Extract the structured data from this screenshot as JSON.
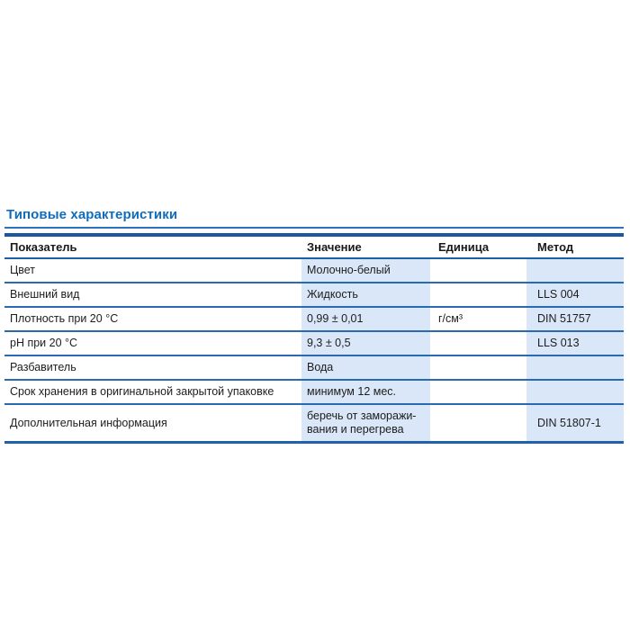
{
  "page": {
    "title": "Типовые характеристики"
  },
  "colors": {
    "title_blue": "#0f6cbd",
    "rule_blue": "#2a6ab0",
    "thick_bar_blue": "#1a57a3",
    "cell_light_blue": "#d9e7f8",
    "text": "#1d1d1d",
    "background": "#ffffff"
  },
  "table": {
    "columns": [
      {
        "label": "Показатель"
      },
      {
        "label": "Значение"
      },
      {
        "label": "Единица"
      },
      {
        "label": "Метод"
      }
    ],
    "rows": [
      {
        "indicator": "Цвет",
        "value": "Молочно-белый",
        "unit": "",
        "method": ""
      },
      {
        "indicator": "Внешний вид",
        "value": "Жидкость",
        "unit": "",
        "method": "LLS 004"
      },
      {
        "indicator": "Плотность при 20 °C",
        "value": "0,99 ± 0,01",
        "unit": "г/см³",
        "method": "DIN 51757"
      },
      {
        "indicator": "pH при 20 °C",
        "value": "9,3 ± 0,5",
        "unit": "",
        "method": "LLS 013"
      },
      {
        "indicator": "Разбавитель",
        "value": "Вода",
        "unit": "",
        "method": ""
      },
      {
        "indicator": "Срок хранения в оригинальной закрытой упаковке",
        "value": "минимум 12 мес.",
        "unit": "",
        "method": ""
      },
      {
        "indicator": "Дополнительная информация",
        "value": "беречь от заморажи-вания и перегрева",
        "unit": "",
        "method": "DIN 51807-1"
      }
    ]
  }
}
